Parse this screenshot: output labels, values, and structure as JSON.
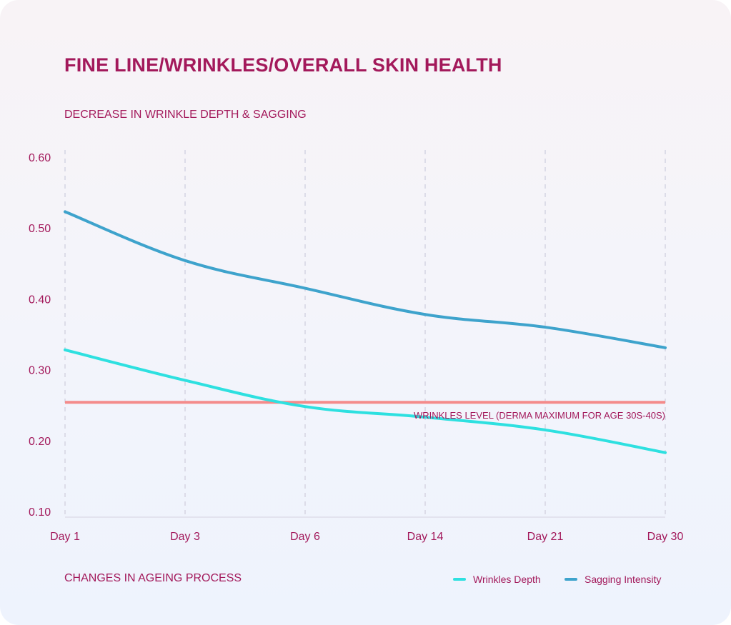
{
  "header": {
    "title": "FINE LINE/WRINKLES/OVERALL SKIN HEALTH",
    "subtitle": "DECREASE IN WRINKLE DEPTH & SAGGING"
  },
  "footer": {
    "label": "CHANGES IN AGEING PROCESS"
  },
  "chart_data": {
    "type": "line",
    "title": "FINE LINE/WRINKLES/OVERALL SKIN HEALTH",
    "subtitle": "DECREASE IN WRINKLE DEPTH & SAGGING",
    "xlabel": "CHANGES IN AGEING PROCESS",
    "ylabel": "",
    "categories": [
      "Day 1",
      "Day 3",
      "Day 6",
      "Day 14",
      "Day 21",
      "Day 30"
    ],
    "ylim": [
      0.1,
      0.6
    ],
    "yticks": [
      0.6,
      0.5,
      0.4,
      0.3,
      0.2,
      0.1
    ],
    "ytick_labels": [
      "0.60",
      "0.50",
      "0.40",
      "0.30",
      "0.20",
      "0.10"
    ],
    "grid": "vertical-dashed",
    "legend_position": "bottom-right",
    "series": [
      {
        "name": "Wrinkles Depth",
        "color": "#2ee0e0",
        "values": [
          0.328,
          0.285,
          0.248,
          0.233,
          0.215,
          0.183
        ]
      },
      {
        "name": "Sagging Intensity",
        "color": "#3ea3cc",
        "values": [
          0.523,
          0.454,
          0.415,
          0.378,
          0.36,
          0.331
        ]
      }
    ],
    "reference_line": {
      "label": "WRINKLES LEVEL (DERMA MAXIMUM FOR AGE 30S-40S)",
      "value": 0.254,
      "color": "#f48b8b"
    },
    "axis_color": "#e3e3ee",
    "grid_color": "#dcdce8"
  }
}
